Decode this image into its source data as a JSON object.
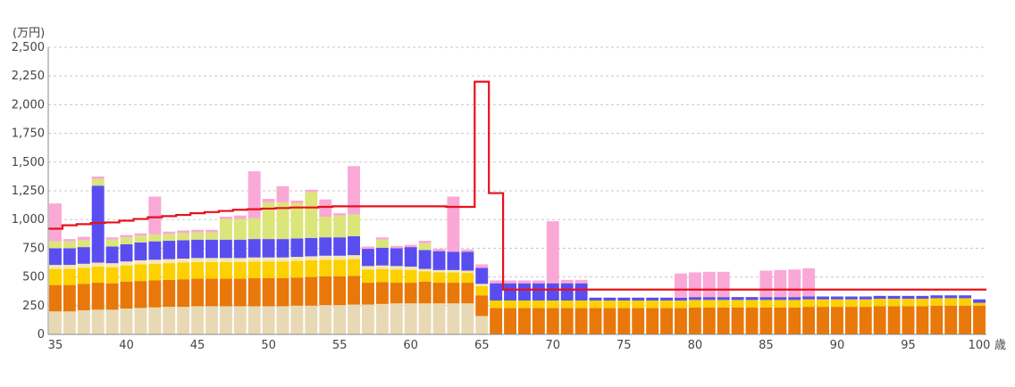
{
  "chart_data": {
    "type": "bar",
    "stacked": true,
    "ylabel": "(万円)",
    "xunit": "歳",
    "ylim": [
      0,
      2500
    ],
    "yticks": [
      "0",
      "250",
      "500",
      "750",
      "1,000",
      "1,250",
      "1,500",
      "1,750",
      "2,000",
      "2,250",
      "2,500"
    ],
    "xticks": [
      "35",
      "40",
      "45",
      "50",
      "55",
      "60",
      "65",
      "70",
      "75",
      "80",
      "85",
      "90",
      "95",
      "100"
    ],
    "grid": true,
    "x": [
      35,
      36,
      37,
      38,
      39,
      40,
      41,
      42,
      43,
      44,
      45,
      46,
      47,
      48,
      49,
      50,
      51,
      52,
      53,
      54,
      55,
      56,
      57,
      58,
      59,
      60,
      61,
      62,
      63,
      64,
      65,
      66,
      67,
      68,
      69,
      70,
      71,
      72,
      73,
      74,
      75,
      76,
      77,
      78,
      79,
      80,
      81,
      82,
      83,
      84,
      85,
      86,
      87,
      88,
      89,
      90,
      91,
      92,
      93,
      94,
      95,
      96,
      97,
      98,
      99,
      100
    ],
    "series": [
      {
        "color": "#e8d9b5",
        "values": [
          200,
          200,
          210,
          215,
          215,
          225,
          230,
          235,
          240,
          240,
          245,
          245,
          245,
          245,
          245,
          245,
          245,
          250,
          250,
          255,
          255,
          260,
          260,
          265,
          270,
          270,
          270,
          270,
          270,
          270,
          160,
          0,
          0,
          0,
          0,
          0,
          0,
          0,
          0,
          0,
          0,
          0,
          0,
          0,
          0,
          0,
          0,
          0,
          0,
          0,
          0,
          0,
          0,
          0,
          0,
          0,
          0,
          0,
          0,
          0,
          0,
          0,
          0,
          0,
          0,
          0
        ]
      },
      {
        "color": "#e8780a",
        "values": [
          230,
          230,
          230,
          235,
          230,
          235,
          235,
          235,
          235,
          240,
          240,
          240,
          240,
          240,
          245,
          245,
          245,
          245,
          250,
          250,
          250,
          250,
          190,
          190,
          180,
          180,
          190,
          180,
          180,
          180,
          180,
          230,
          230,
          230,
          230,
          230,
          230,
          230,
          230,
          230,
          230,
          230,
          230,
          230,
          230,
          235,
          235,
          235,
          235,
          235,
          235,
          235,
          235,
          240,
          240,
          240,
          240,
          240,
          245,
          245,
          245,
          245,
          250,
          250,
          250,
          250
        ]
      },
      {
        "color": "#fdd000",
        "values": [
          140,
          140,
          140,
          140,
          140,
          140,
          145,
          145,
          145,
          145,
          145,
          145,
          145,
          145,
          145,
          145,
          145,
          145,
          145,
          145,
          145,
          145,
          115,
          115,
          115,
          110,
          90,
          90,
          90,
          85,
          80,
          65,
          65,
          65,
          65,
          65,
          65,
          65,
          65,
          65,
          65,
          65,
          65,
          65,
          65,
          65,
          65,
          65,
          65,
          65,
          65,
          65,
          65,
          65,
          65,
          65,
          65,
          65,
          65,
          65,
          65,
          65,
          65,
          65,
          65,
          25
        ]
      },
      {
        "color": "#f5e7b0",
        "values": [
          35,
          35,
          35,
          35,
          35,
          35,
          35,
          35,
          35,
          35,
          35,
          35,
          35,
          35,
          35,
          35,
          35,
          35,
          35,
          35,
          35,
          35,
          30,
          30,
          30,
          30,
          20,
          20,
          20,
          20,
          20,
          0,
          0,
          0,
          0,
          0,
          0,
          0,
          0,
          0,
          0,
          0,
          0,
          0,
          0,
          0,
          0,
          0,
          0,
          0,
          0,
          0,
          0,
          0,
          0,
          0,
          0,
          0,
          0,
          0,
          0,
          0,
          0,
          0,
          0,
          0
        ]
      },
      {
        "color": "#5a4df0",
        "values": [
          145,
          145,
          145,
          670,
          145,
          150,
          155,
          160,
          160,
          160,
          160,
          160,
          160,
          160,
          160,
          160,
          160,
          160,
          160,
          160,
          160,
          165,
          150,
          155,
          155,
          170,
          165,
          165,
          160,
          165,
          140,
          150,
          150,
          150,
          150,
          150,
          150,
          150,
          25,
          25,
          25,
          25,
          25,
          25,
          25,
          25,
          25,
          25,
          25,
          25,
          25,
          25,
          25,
          25,
          25,
          25,
          25,
          25,
          25,
          25,
          25,
          25,
          25,
          25,
          25,
          30
        ]
      },
      {
        "color": "#dbe57a",
        "values": [
          60,
          60,
          60,
          60,
          60,
          60,
          60,
          60,
          60,
          65,
          65,
          65,
          180,
          180,
          180,
          320,
          320,
          310,
          400,
          180,
          190,
          190,
          0,
          70,
          0,
          0,
          60,
          0,
          0,
          0,
          0,
          0,
          0,
          0,
          0,
          0,
          0,
          0,
          0,
          0,
          0,
          0,
          0,
          0,
          0,
          0,
          0,
          0,
          0,
          0,
          0,
          0,
          0,
          0,
          0,
          0,
          0,
          0,
          0,
          0,
          0,
          0,
          0,
          0,
          0,
          0
        ]
      },
      {
        "color": "#faa8d6",
        "values": [
          330,
          20,
          30,
          20,
          20,
          20,
          20,
          330,
          20,
          20,
          20,
          20,
          20,
          30,
          410,
          30,
          140,
          20,
          20,
          150,
          20,
          420,
          20,
          20,
          20,
          20,
          20,
          20,
          480,
          20,
          30,
          25,
          25,
          25,
          25,
          540,
          30,
          30,
          0,
          0,
          0,
          0,
          0,
          0,
          210,
          215,
          220,
          220,
          0,
          0,
          230,
          235,
          240,
          245,
          0,
          0,
          0,
          0,
          0,
          0,
          0,
          0,
          0,
          0,
          0,
          0
        ]
      }
    ],
    "line": {
      "color": "#e8101c",
      "values": [
        920,
        950,
        960,
        970,
        975,
        990,
        1005,
        1020,
        1030,
        1040,
        1055,
        1065,
        1075,
        1085,
        1090,
        1095,
        1100,
        1105,
        1105,
        1110,
        1115,
        1115,
        1115,
        1115,
        1115,
        1115,
        1115,
        1115,
        1110,
        1110,
        2200,
        1230,
        390,
        390,
        390,
        390,
        390,
        390,
        390,
        390,
        390,
        390,
        390,
        390,
        390,
        390,
        390,
        390,
        390,
        390,
        390,
        390,
        390,
        390,
        390,
        390,
        390,
        390,
        390,
        390,
        390,
        390,
        390,
        390,
        390,
        390
      ]
    }
  }
}
